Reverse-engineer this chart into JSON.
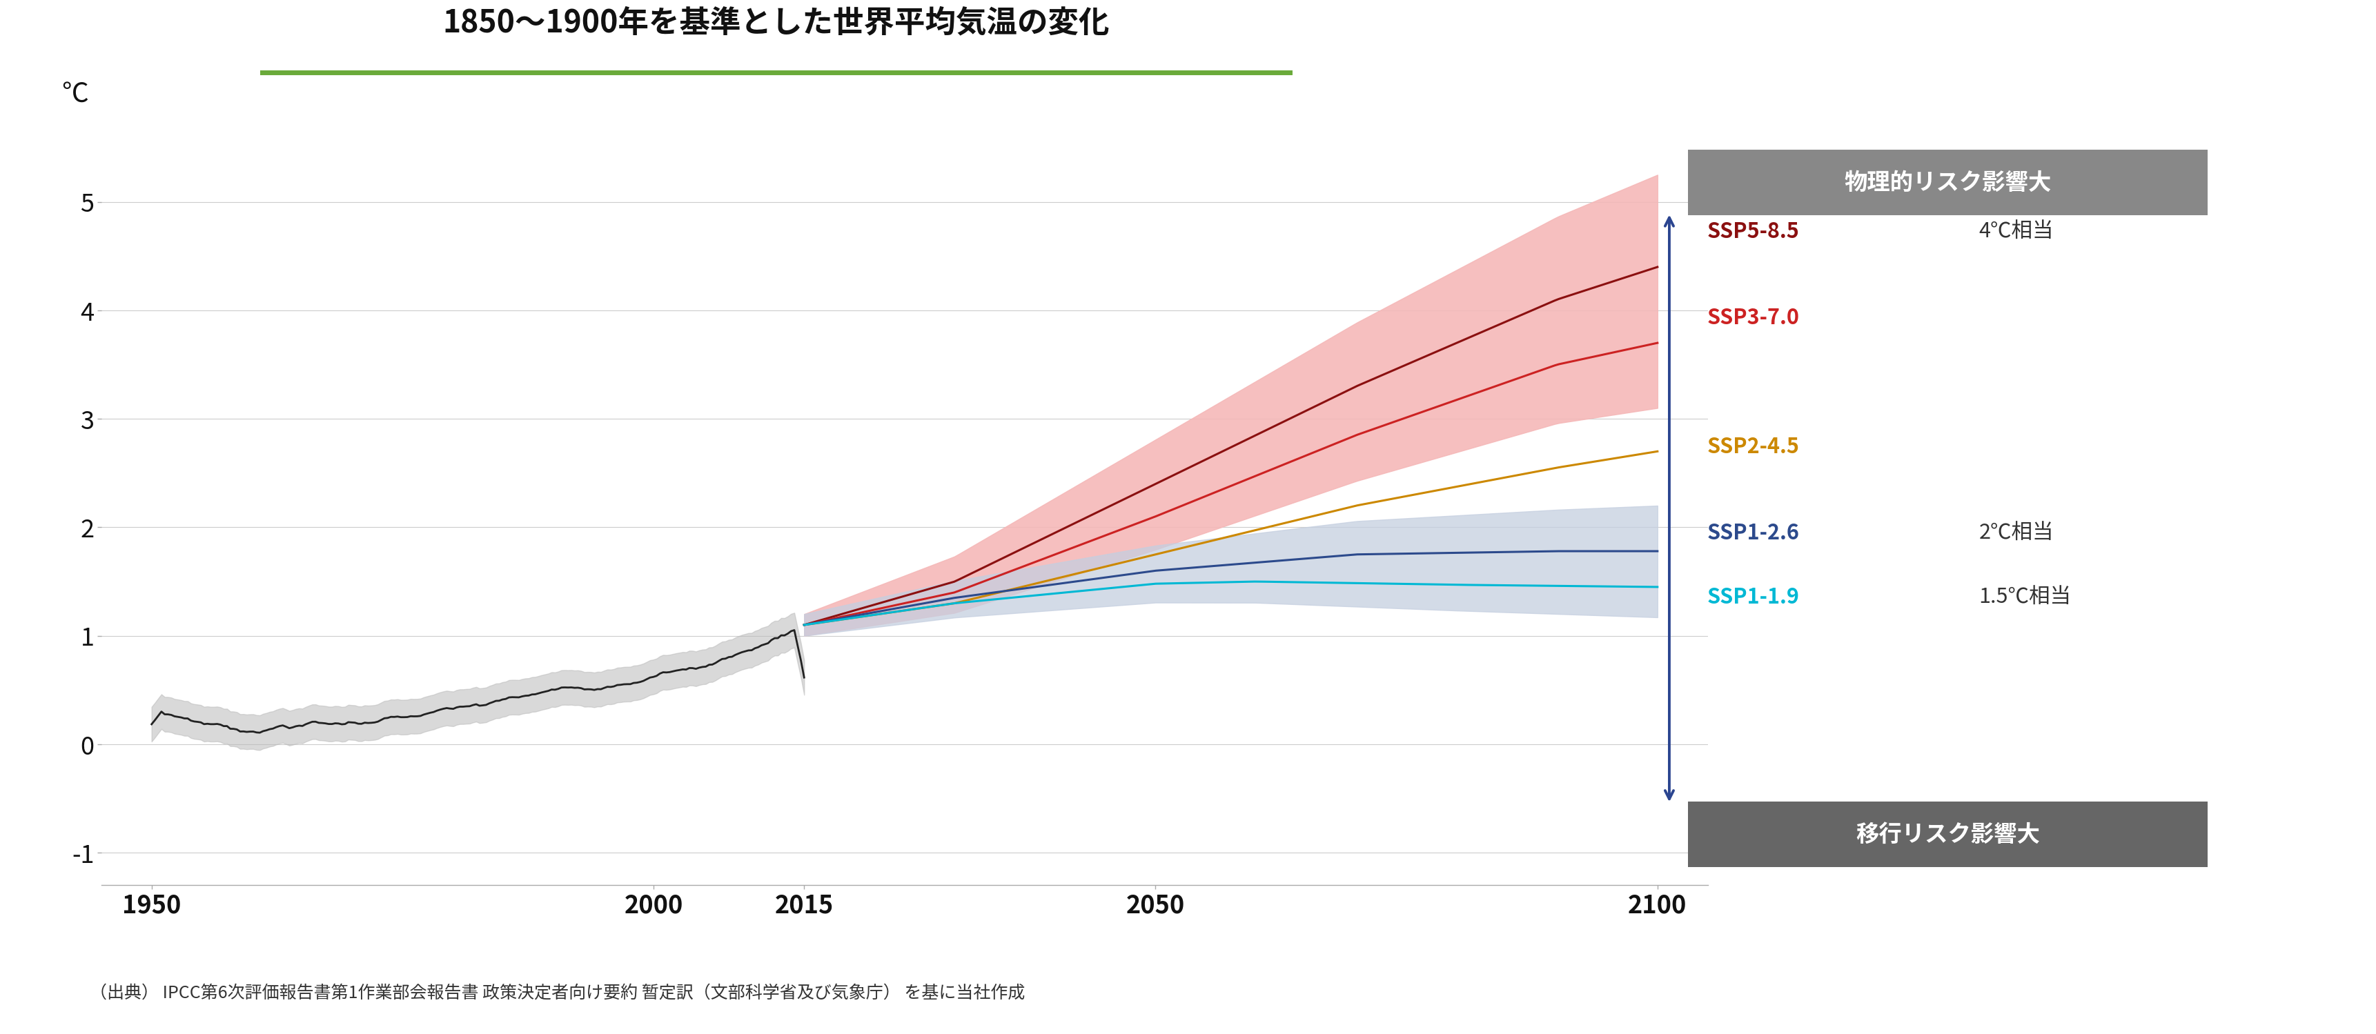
{
  "title": "1850～1900年を基準とした世界平均気温の変化",
  "ylabel": "℃",
  "xlabel_caption": "（出典） IPCC第6次評価報告書第1作業部会報告書 政策決定者向け要約 暂定訳（文部科学省及び気象庁） を基に当社作成",
  "xlim": [
    1945,
    2105
  ],
  "ylim": [
    -1.3,
    5.8
  ],
  "yticks": [
    -1,
    0,
    1,
    2,
    3,
    4,
    5
  ],
  "xticks": [
    1950,
    2000,
    2015,
    2050,
    2100
  ],
  "background_color": "#ffffff",
  "title_underline_color": "#6aaa3a",
  "arrow_color": "#2b4590",
  "label_physical": "物理的リスク影響大",
  "label_transition": "移行リスク影響大",
  "historical_color": "#222222",
  "historical_band_color": "#bbbbbb",
  "ssp119_color": "#00b8d4",
  "ssp126_color": "#2c4a8c",
  "ssp245_color": "#cc8800",
  "ssp370_color": "#cc2222",
  "ssp585_color": "#8b1010",
  "ssp_pink_band": "#f5b8b8",
  "ssp_blue_band": "#c5cfe0",
  "label_ssp585": "SSP5-8.5",
  "label_ssp370": "SSP3-7.0",
  "label_ssp245": "SSP2-4.5",
  "label_ssp126": "SSP1-2.6",
  "label_ssp119": "SSP1-1.9",
  "note_4c": "4℃相当",
  "note_2c": "2℃相当",
  "note_15c": "1.5℃相当",
  "box_phys_color": "#888888",
  "box_trans_color": "#666666"
}
